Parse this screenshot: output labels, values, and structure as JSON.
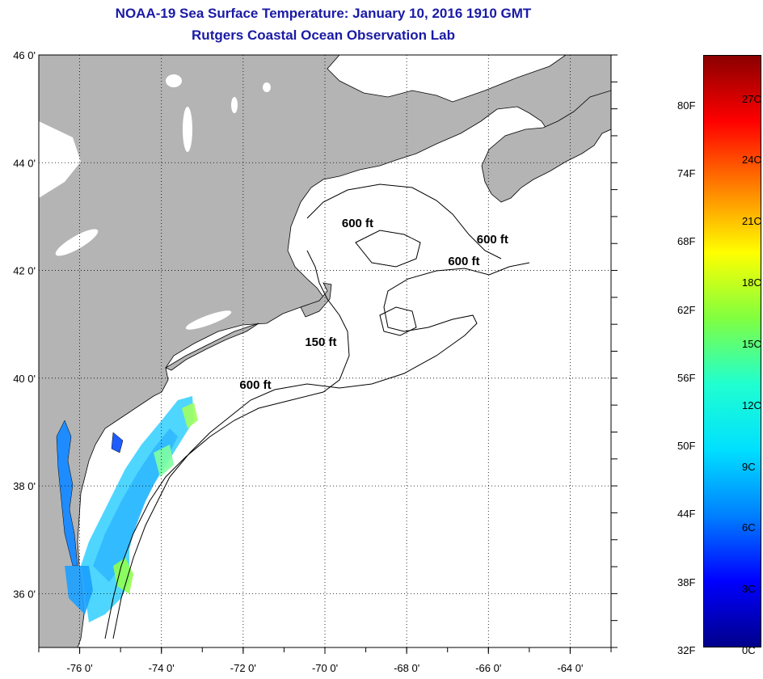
{
  "title": "NOAA-19 Sea Surface Temperature:  January 10, 2016 1910 GMT",
  "subtitle": "Rutgers Coastal Ocean Observation Lab",
  "chart_data": {
    "type": "heatmap",
    "lon_range": [
      -77.0,
      -63.0
    ],
    "lat_range": [
      35.0,
      46.0
    ],
    "lon_ticks": [
      {
        "value": -76,
        "label": "-76 0'"
      },
      {
        "value": -74,
        "label": "-74 0'"
      },
      {
        "value": -72,
        "label": "-72 0'"
      },
      {
        "value": -70,
        "label": "-70 0'"
      },
      {
        "value": -68,
        "label": "-68 0'"
      },
      {
        "value": -66,
        "label": "-66 0'"
      },
      {
        "value": -64,
        "label": "-64 0'"
      }
    ],
    "lat_ticks": [
      {
        "value": 46,
        "label": "46 0'"
      },
      {
        "value": 44,
        "label": "44 0'"
      },
      {
        "value": 42,
        "label": "42 0'"
      },
      {
        "value": 40,
        "label": "40 0'"
      },
      {
        "value": 38,
        "label": "38 0'"
      },
      {
        "value": 36,
        "label": "36 0'"
      }
    ],
    "grid": true,
    "contour_labels": [
      {
        "text": "600 ft",
        "lon": -69.2,
        "lat": 42.8
      },
      {
        "text": "600 ft",
        "lon": -65.9,
        "lat": 42.5
      },
      {
        "text": "600 ft",
        "lon": -66.6,
        "lat": 42.1
      },
      {
        "text": "150 ft",
        "lon": -70.1,
        "lat": 40.6
      },
      {
        "text": "600 ft",
        "lon": -71.7,
        "lat": 39.8
      }
    ],
    "colorbar": {
      "celsius_range": [
        0,
        29
      ],
      "fahrenheit_labels": [
        "32F",
        "38F",
        "44F",
        "50F",
        "56F",
        "62F",
        "68F",
        "74F",
        "80F"
      ],
      "celsius_labels": [
        "0C",
        "3C",
        "6C",
        "9C",
        "12C",
        "15C",
        "18C",
        "21C",
        "24C",
        "27C"
      ],
      "colors": [
        "#00008b",
        "#0000ff",
        "#0080ff",
        "#00e0ff",
        "#20ffd0",
        "#80ff40",
        "#ffff00",
        "#ff8000",
        "#ff0000",
        "#8b0000"
      ]
    },
    "land_color": "#b4b4b4",
    "ocean_color": "#ffffff"
  }
}
